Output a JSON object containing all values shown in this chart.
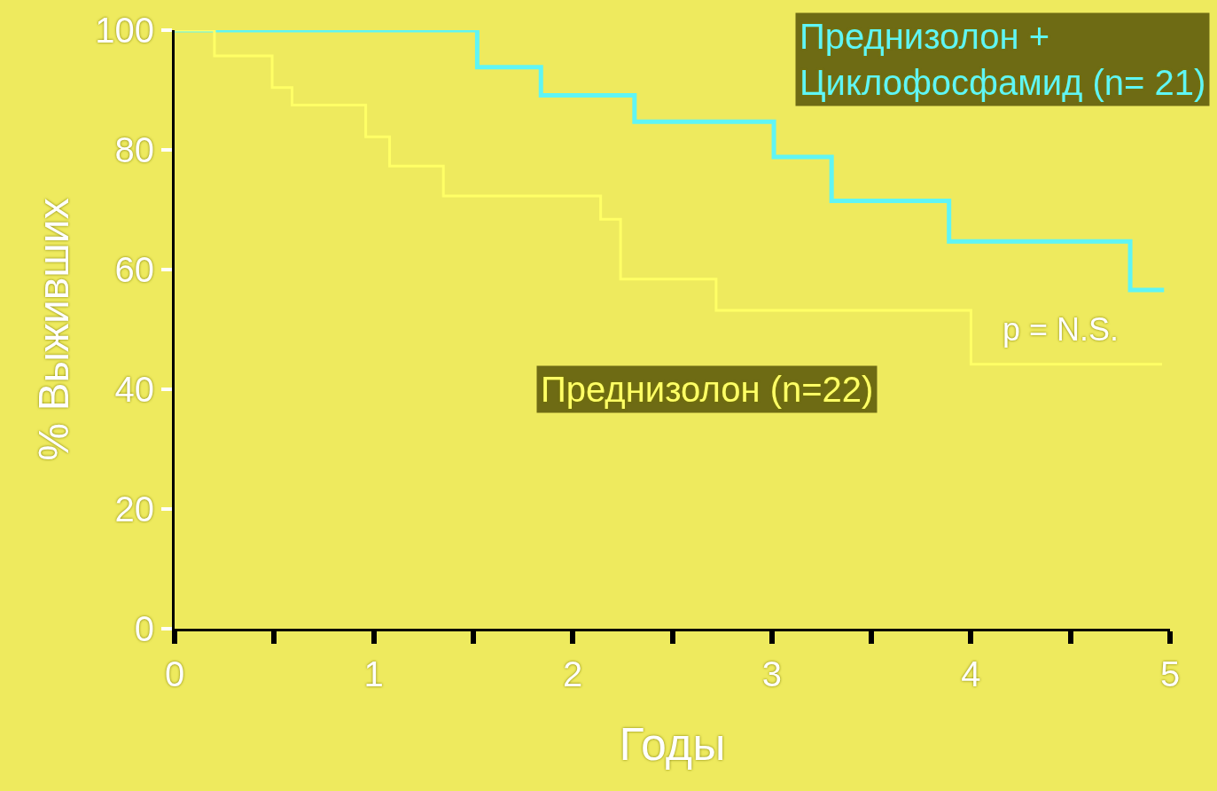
{
  "chart_data": {
    "type": "step",
    "xlabel": "Годы",
    "ylabel": "% Выживших",
    "xlim": [
      0,
      5
    ],
    "ylim": [
      0,
      100
    ],
    "xticks": [
      0,
      {
        "value": 0.5,
        "label": null
      },
      1,
      {
        "value": 1.5,
        "label": null
      },
      2,
      {
        "value": 2.5,
        "label": null
      },
      3,
      {
        "value": 3.5,
        "label": null
      },
      4,
      {
        "value": 4.5,
        "label": null
      },
      5
    ],
    "yticks": [
      0,
      20,
      40,
      60,
      80,
      100
    ],
    "grid": false,
    "legend": false,
    "marker": "none",
    "line_style": "solid",
    "series": [
      {
        "name": "Преднизолон +\nЦиклофосфамид (n= 21)",
        "color": "#5ff5f5",
        "x": [
          0,
          1.52,
          1.84,
          2.31,
          3.01,
          3.3,
          3.89,
          4.8,
          4.97
        ],
        "values": [
          100,
          93.8,
          89.1,
          84.7,
          78.8,
          71.5,
          64.7,
          56.6,
          56.6
        ]
      },
      {
        "name": "Преднизолон (n=22)",
        "color": "#ffff66",
        "x": [
          0,
          0.2,
          0.49,
          0.59,
          0.96,
          1.08,
          1.35,
          2.14,
          2.24,
          2.72,
          4.0,
          4.96
        ],
        "values": [
          100,
          95.7,
          90.4,
          87.5,
          82.2,
          77.3,
          72.3,
          68.4,
          58.4,
          53.2,
          44.2,
          44.2
        ]
      }
    ],
    "annotations": [
      "p = N.S."
    ]
  }
}
